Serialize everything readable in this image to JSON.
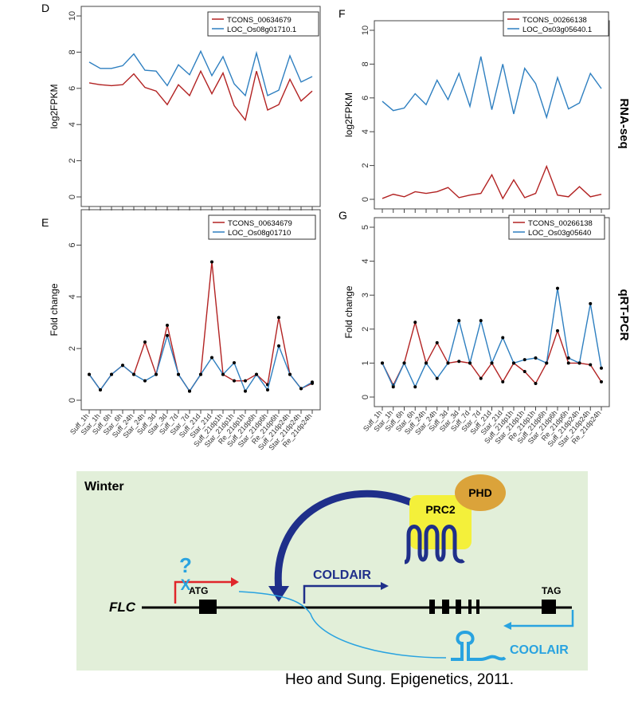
{
  "figure": {
    "side_labels": {
      "rnaseq": "RNA-seq",
      "qrtpcr": "qRT-PCR"
    },
    "citation": "Heo and Sung. Epigenetics, 2011."
  },
  "chart_data": [
    {
      "id": "D",
      "panel_label": "D",
      "type": "line",
      "ylabel": "log2FPKM",
      "ylim": [
        0,
        10
      ],
      "yticks": [
        0,
        2,
        4,
        6,
        8,
        10
      ],
      "n_points": 21,
      "series": [
        {
          "name": "TCONS_00634679",
          "color": "#b22222",
          "values": [
            6.3,
            6.2,
            6.15,
            6.2,
            6.8,
            6.05,
            5.85,
            5.1,
            6.2,
            5.6,
            6.95,
            5.7,
            6.85,
            5.05,
            4.25,
            6.95,
            4.8,
            5.1,
            6.5,
            5.3,
            5.85
          ]
        },
        {
          "name": "LOC_Os08g01710.1",
          "color": "#2e7fc0",
          "values": [
            7.45,
            7.1,
            7.1,
            7.25,
            7.9,
            7.0,
            6.95,
            6.15,
            7.3,
            6.75,
            8.05,
            6.7,
            7.75,
            6.25,
            5.6,
            7.95,
            5.6,
            5.9,
            7.8,
            6.35,
            6.65
          ]
        }
      ]
    },
    {
      "id": "F",
      "panel_label": "F",
      "type": "line",
      "ylabel": "log2FPKM",
      "ylim": [
        0,
        10
      ],
      "yticks": [
        0,
        2,
        4,
        6,
        8,
        10
      ],
      "n_points": 21,
      "series": [
        {
          "name": "TCONS_00266138",
          "color": "#b22222",
          "values": [
            0.05,
            0.3,
            0.15,
            0.45,
            0.35,
            0.45,
            0.7,
            0.1,
            0.25,
            0.35,
            1.45,
            0.05,
            1.15,
            0.1,
            0.35,
            1.95,
            0.25,
            0.15,
            0.75,
            0.15,
            0.3
          ]
        },
        {
          "name": "LOC_Os03g05640.1",
          "color": "#2e7fc0",
          "values": [
            5.8,
            5.25,
            5.4,
            6.25,
            5.6,
            7.05,
            5.9,
            7.45,
            5.5,
            8.45,
            5.3,
            8.0,
            5.05,
            7.75,
            6.85,
            4.85,
            7.2,
            5.35,
            5.7,
            7.45,
            6.55
          ]
        }
      ]
    },
    {
      "id": "E",
      "panel_label": "E",
      "type": "line",
      "ylabel": "Fold change",
      "ylim": [
        0,
        7
      ],
      "yticks": [
        0,
        2,
        4,
        6
      ],
      "categories": [
        "Suff_1h",
        "Star_1h",
        "Suff_6h",
        "Star_6h",
        "Suff_24h",
        "Star_24h",
        "Suff_3d",
        "Star_3d",
        "Suff_7d",
        "Star_7d",
        "Suff_21d",
        "Star_21d",
        "Suff_21dp1h",
        "Star_21dp1h",
        "Re_21dp1h",
        "Suff_21dp6h",
        "Star_21dp6h",
        "Re_21dp6h",
        "Suff_21dp24h",
        "Star_21dp24h",
        "Re_21dp24h"
      ],
      "series": [
        {
          "name": "TCONS_00634679",
          "color": "#b22222",
          "values": [
            1.0,
            0.4,
            1.0,
            1.35,
            1.0,
            2.25,
            1.0,
            2.9,
            1.0,
            0.35,
            1.0,
            5.35,
            1.0,
            0.75,
            0.75,
            1.0,
            0.6,
            3.2,
            1.0,
            0.45,
            0.65
          ]
        },
        {
          "name": "LOC_Os08g01710",
          "color": "#2e7fc0",
          "values": [
            1.0,
            0.4,
            1.0,
            1.35,
            1.0,
            0.75,
            1.0,
            2.5,
            1.0,
            0.35,
            1.0,
            1.65,
            1.0,
            1.45,
            0.35,
            1.0,
            0.4,
            2.1,
            1.0,
            0.45,
            0.7
          ]
        }
      ]
    },
    {
      "id": "G",
      "panel_label": "G",
      "type": "line",
      "ylabel": "Fold change",
      "ylim": [
        0,
        5
      ],
      "yticks": [
        0,
        1,
        2,
        3,
        4,
        5
      ],
      "categories": [
        "Suff_1h",
        "Star_1h",
        "Suff_6h",
        "Star_6h",
        "Suff_24h",
        "Star_24h",
        "Suff_3d",
        "Star_3d",
        "Suff_7d",
        "Star_7d",
        "Suff_21d",
        "Star_21d",
        "Suff_21dp1h",
        "Star_21dp1h",
        "Re_21dp1h",
        "Suff_21dp6h",
        "Star_21dp6h",
        "Re_21dp6h",
        "Suff_21dp24h",
        "Star_21dp24h",
        "Re_21dp24h"
      ],
      "series": [
        {
          "name": "TCONS_00266138",
          "color": "#b22222",
          "values": [
            1.0,
            0.35,
            1.0,
            2.2,
            1.0,
            1.6,
            1.0,
            1.05,
            1.0,
            0.55,
            1.0,
            0.45,
            1.0,
            0.75,
            0.4,
            1.0,
            1.95,
            1.0,
            1.0,
            0.95,
            0.45
          ]
        },
        {
          "name": "LOC_Os03g05640",
          "color": "#2e7fc0",
          "values": [
            1.0,
            0.3,
            1.0,
            0.3,
            1.0,
            0.55,
            1.0,
            2.25,
            1.0,
            2.25,
            1.0,
            1.75,
            1.0,
            1.1,
            1.15,
            1.0,
            3.2,
            1.15,
            1.0,
            2.75,
            0.85
          ]
        }
      ]
    }
  ],
  "diagram": {
    "season_label": "Winter",
    "gene_label": "FLC",
    "start_codon": "ATG",
    "stop_codon": "TAG",
    "question_mark": "?",
    "block_mark": "X",
    "coldair_label": "COLDAIR",
    "coolair_label": "COOLAIR",
    "prc2_label": "PRC2",
    "phd_label": "PHD",
    "colors": {
      "background": "#e2efd9",
      "coldair": "#1f2f8a",
      "coolair": "#29a3e0",
      "tss_arrow": "#e0262b",
      "prc2": "#f4f03a",
      "phd": "#dba33a"
    }
  }
}
